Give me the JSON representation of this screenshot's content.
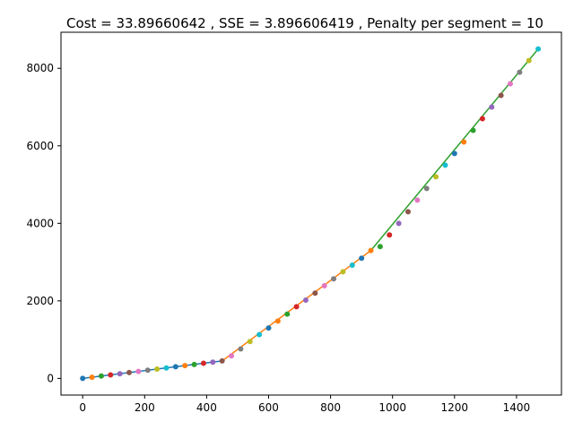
{
  "chart_data": {
    "type": "scatter",
    "title": "Cost = 33.89660642 , SSE = 3.896606419 , Penalty per segment = 10",
    "xlabel": "",
    "ylabel": "",
    "xlim": [
      -70,
      1545
    ],
    "ylim": [
      -430,
      8930
    ],
    "xticks": [
      0,
      200,
      400,
      600,
      800,
      1000,
      1200,
      1400
    ],
    "xtick_labels": [
      "0",
      "200",
      "400",
      "600",
      "800",
      "1000",
      "1200",
      "1400"
    ],
    "yticks": [
      0,
      2000,
      4000,
      6000,
      8000
    ],
    "ytick_labels": [
      "0",
      "2000",
      "4000",
      "6000",
      "8000"
    ],
    "grid": false,
    "legend": "none",
    "segments": [
      {
        "x": [
          0,
          450
        ],
        "y": [
          0,
          450
        ],
        "color": "#1f77b4"
      },
      {
        "x": [
          450,
          930
        ],
        "y": [
          450,
          3300
        ],
        "color": "#ff7f0e"
      },
      {
        "x": [
          930,
          1470
        ],
        "y": [
          3300,
          8500
        ],
        "color": "#2ca02c"
      }
    ],
    "point_colors": [
      "#1f77b4",
      "#ff7f0e",
      "#2ca02c",
      "#d62728",
      "#9467bd",
      "#8c564b",
      "#e377c2",
      "#7f7f7f",
      "#bcbd22",
      "#17becf"
    ],
    "points": {
      "x": [
        0,
        30,
        60,
        90,
        120,
        150,
        180,
        210,
        240,
        270,
        300,
        330,
        360,
        390,
        420,
        450,
        480,
        510,
        540,
        570,
        600,
        630,
        660,
        690,
        720,
        750,
        780,
        810,
        840,
        870,
        900,
        930,
        960,
        990,
        1020,
        1050,
        1080,
        1110,
        1140,
        1170,
        1200,
        1230,
        1260,
        1290,
        1320,
        1350,
        1380,
        1410,
        1440,
        1470
      ],
      "y": [
        0,
        30,
        60,
        90,
        120,
        150,
        180,
        210,
        240,
        270,
        300,
        330,
        360,
        390,
        420,
        450,
        580,
        760,
        950,
        1130,
        1300,
        1480,
        1660,
        1850,
        2020,
        2200,
        2390,
        2570,
        2750,
        2920,
        3100,
        3300,
        3400,
        3700,
        4000,
        4300,
        4600,
        4900,
        5200,
        5500,
        5800,
        6100,
        6400,
        6700,
        7000,
        7300,
        7600,
        7900,
        8200,
        8500
      ]
    }
  }
}
